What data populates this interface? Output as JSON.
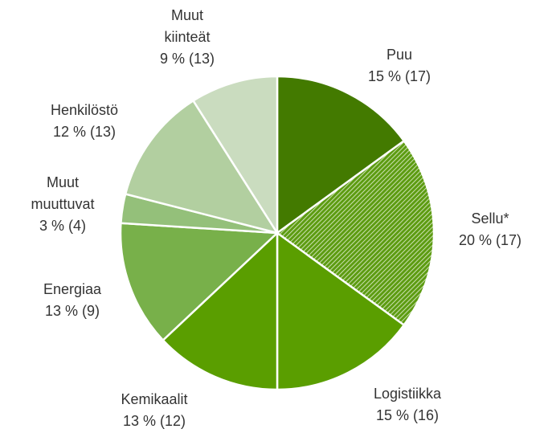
{
  "chart_data": {
    "type": "pie",
    "categories": [
      "Puu",
      "Sellu*",
      "Logistiikka",
      "Kemikaalit",
      "Energiaa",
      "Muut muuttuvat",
      "Henkilöstö",
      "Muut kiinteät"
    ],
    "values": [
      15,
      20,
      15,
      13,
      13,
      3,
      12,
      9
    ],
    "value_labels": [
      "15 % (17)",
      "20 % (17)",
      "15 % (16)",
      "13 % (12)",
      "13 % (9)",
      "3 % (4)",
      "12 % (13)",
      "9 % (13)"
    ],
    "colors": [
      "#437a00",
      "#5d9c12",
      "#5a9e00",
      "#5a9e00",
      "#78b04a",
      "#94c07a",
      "#b2cfa0",
      "#cadcbf"
    ],
    "hatched": [
      1
    ]
  }
}
